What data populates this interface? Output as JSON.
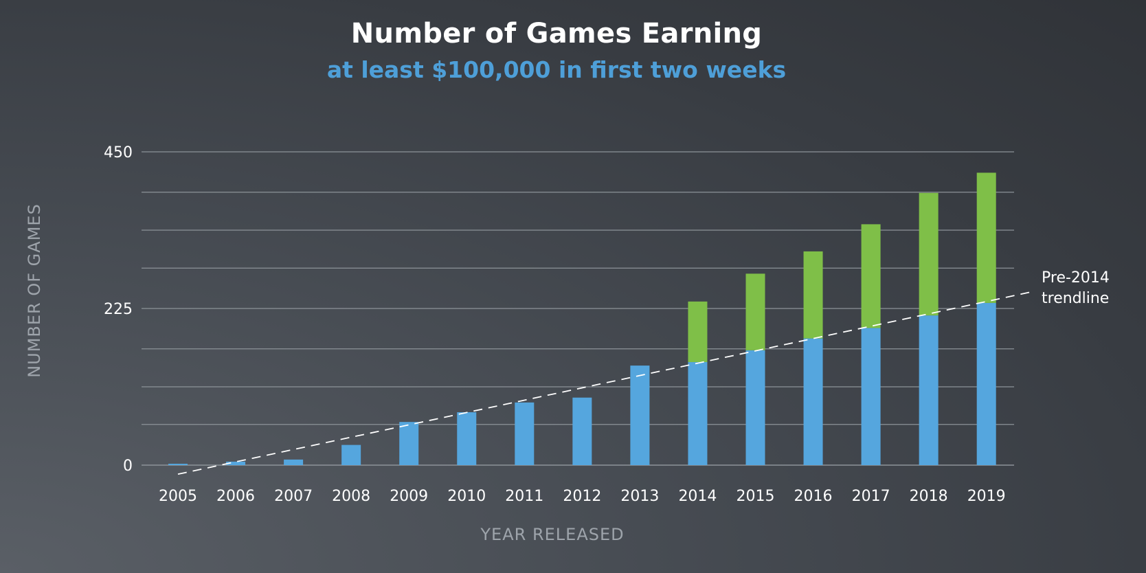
{
  "chart_data": {
    "type": "bar",
    "stacked": true,
    "title": "Number of Games Earning",
    "subtitle": "at least $100,000 in first two weeks",
    "xlabel": "YEAR RELEASED",
    "ylabel": "NUMBER OF GAMES",
    "categories": [
      "2005",
      "2006",
      "2007",
      "2008",
      "2009",
      "2010",
      "2011",
      "2012",
      "2013",
      "2014",
      "2015",
      "2016",
      "2017",
      "2018",
      "2019"
    ],
    "series": [
      {
        "values": [
          2,
          5,
          8,
          29,
          62,
          76,
          90,
          97,
          143,
          148,
          165,
          182,
          197,
          215,
          233
        ],
        "color": "#55a6de"
      },
      {
        "values": [
          0,
          0,
          0,
          0,
          0,
          0,
          0,
          0,
          0,
          87,
          110,
          125,
          149,
          176,
          187
        ],
        "color": "#7fbf48"
      }
    ],
    "ylim": [
      0,
      450
    ],
    "yticks": [
      0,
      225,
      450
    ],
    "gridlines": [
      0,
      58.5,
      112.5,
      167,
      225,
      283,
      337.5,
      392,
      450
    ],
    "trendline": {
      "label_line1": "Pre-2014",
      "label_line2": "trendline",
      "x_start": "2005",
      "y_start": -13,
      "x_end": "2019",
      "y_end": 235,
      "style": "dashed",
      "color": "#ffffff"
    },
    "grid": true,
    "legend": "none"
  }
}
